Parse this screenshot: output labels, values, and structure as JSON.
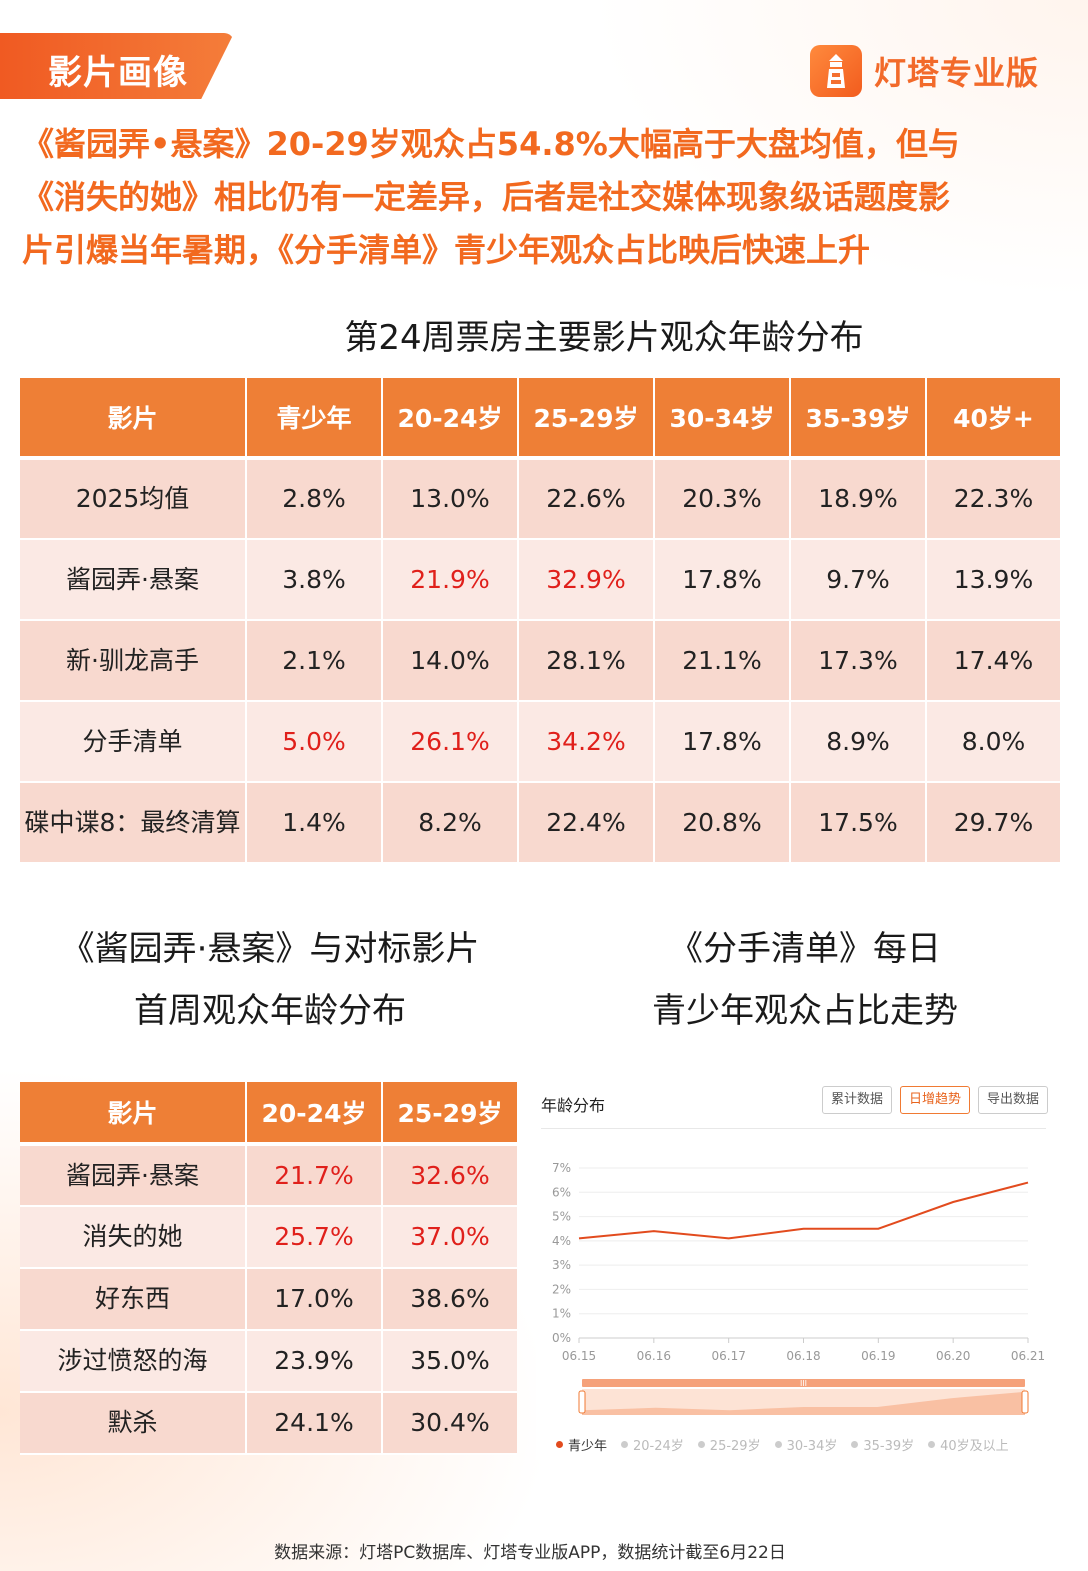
{
  "header": {
    "section_tag": "影片画像",
    "logo_text": "灯塔专业版",
    "logo_icon": "lighthouse-icon",
    "accent_color": "#f26a2a"
  },
  "headline": [
    "《酱园弄•悬案》20-29岁观众占54.8%大幅高于大盘均值，但与",
    "《消失的她》相比仍有一定差异，后者是社交媒体现象级话题度影",
    "片引爆当年暑期，《分手清单》青少年观众占比映后快速上升"
  ],
  "main_table": {
    "title": "第24周票房主要影片观众年龄分布",
    "headers": [
      "影片",
      "青少年",
      "20-24岁",
      "25-29岁",
      "30-34岁",
      "35-39岁",
      "40岁+"
    ],
    "rows": [
      [
        "2025均值",
        "2.8%",
        "13.0%",
        "22.6%",
        "20.3%",
        "18.9%",
        "22.3%"
      ],
      [
        "酱园弄·悬案",
        "3.8%",
        "21.9%",
        "32.9%",
        "17.8%",
        "9.7%",
        "13.9%"
      ],
      [
        "新·驯龙高手",
        "2.1%",
        "14.0%",
        "28.1%",
        "21.1%",
        "17.3%",
        "17.4%"
      ],
      [
        "分手清单",
        "5.0%",
        "26.1%",
        "34.2%",
        "17.8%",
        "8.9%",
        "8.0%"
      ],
      [
        "碟中谍8：最终清算",
        "1.4%",
        "8.2%",
        "22.4%",
        "20.8%",
        "17.5%",
        "29.7%"
      ]
    ],
    "highlight_color": "#e0201b"
  },
  "compare_table": {
    "title_lines": [
      "《酱园弄·悬案》与对标影片",
      "首周观众年龄分布"
    ],
    "headers": [
      "影片",
      "20-24岁",
      "25-29岁"
    ],
    "rows": [
      [
        "酱园弄·悬案",
        "21.7%",
        "32.6%"
      ],
      [
        "消失的她",
        "25.7%",
        "37.0%"
      ],
      [
        "好东西",
        "17.0%",
        "38.6%"
      ],
      [
        "涉过愤怒的海",
        "23.9%",
        "35.0%"
      ],
      [
        "默杀",
        "24.1%",
        "30.4%"
      ]
    ]
  },
  "trend": {
    "title_lines": [
      "《分手清单》每日",
      "青少年观众占比走势"
    ],
    "panel_title": "年龄分布",
    "buttons": [
      "累计数据",
      "日增趋势",
      "导出数据"
    ],
    "active_button": "日增趋势",
    "legend": [
      "青少年",
      "20-24岁",
      "25-29岁",
      "30-34岁",
      "35-39岁",
      "40岁及以上"
    ],
    "slider_label": "III"
  },
  "chart_data": {
    "type": "line",
    "title": "年龄分布",
    "x": [
      "06.15",
      "06.16",
      "06.17",
      "06.18",
      "06.19",
      "06.20",
      "06.21"
    ],
    "y_ticks": [
      "0%",
      "1%",
      "2%",
      "3%",
      "4%",
      "5%",
      "6%",
      "7%"
    ],
    "ylim": [
      0,
      7
    ],
    "series": [
      {
        "name": "青少年",
        "values": [
          4.1,
          4.4,
          4.1,
          4.5,
          4.5,
          5.6,
          6.4
        ],
        "color": "#e24b1e"
      }
    ],
    "legend_position": "bottom-left",
    "grid": true
  },
  "footer": {
    "source": "数据来源：灯塔PC数据库、灯塔专业版APP，数据统计截至6月22日"
  }
}
